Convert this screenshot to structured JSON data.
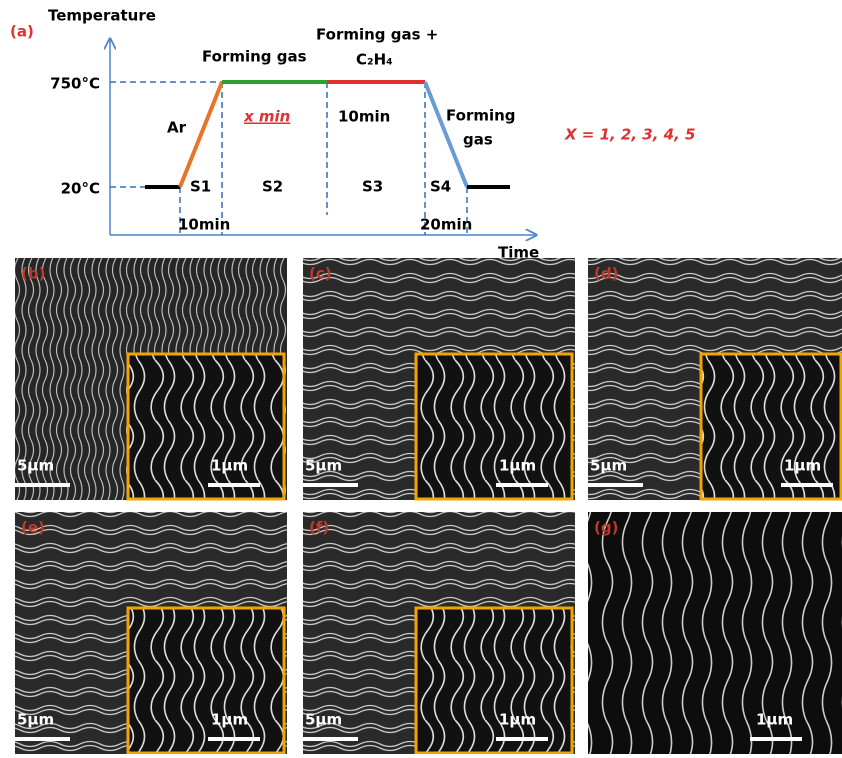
{
  "panel_a": {
    "label": "(a)",
    "y_axis_label": "Temperature",
    "x_axis_label": "Time",
    "temperatures": [
      "750°C",
      "20°C"
    ],
    "stages": [
      "S1",
      "S2",
      "S3",
      "S4"
    ],
    "gases": [
      "Ar",
      "Forming gas",
      "Forming gas +",
      "C₂H₄",
      "Forming",
      "gas"
    ],
    "durations": [
      "10min",
      "x min",
      "10min",
      "20min"
    ],
    "note": "X = 1, 2, 3, 4, 5"
  },
  "images": [
    {
      "label": "(b)",
      "scale": "5μm",
      "inset_scale": "1μm"
    },
    {
      "label": "(c)",
      "scale": "5μm",
      "inset_scale": "1μm"
    },
    {
      "label": "(d)",
      "scale": "5μm",
      "inset_scale": "1μm"
    },
    {
      "label": "(e)",
      "scale": "5μm",
      "inset_scale": "1μm"
    },
    {
      "label": "(f)",
      "scale": "5μm",
      "inset_scale": "1μm"
    },
    {
      "label": "(g)",
      "scale": "1μm"
    }
  ]
}
